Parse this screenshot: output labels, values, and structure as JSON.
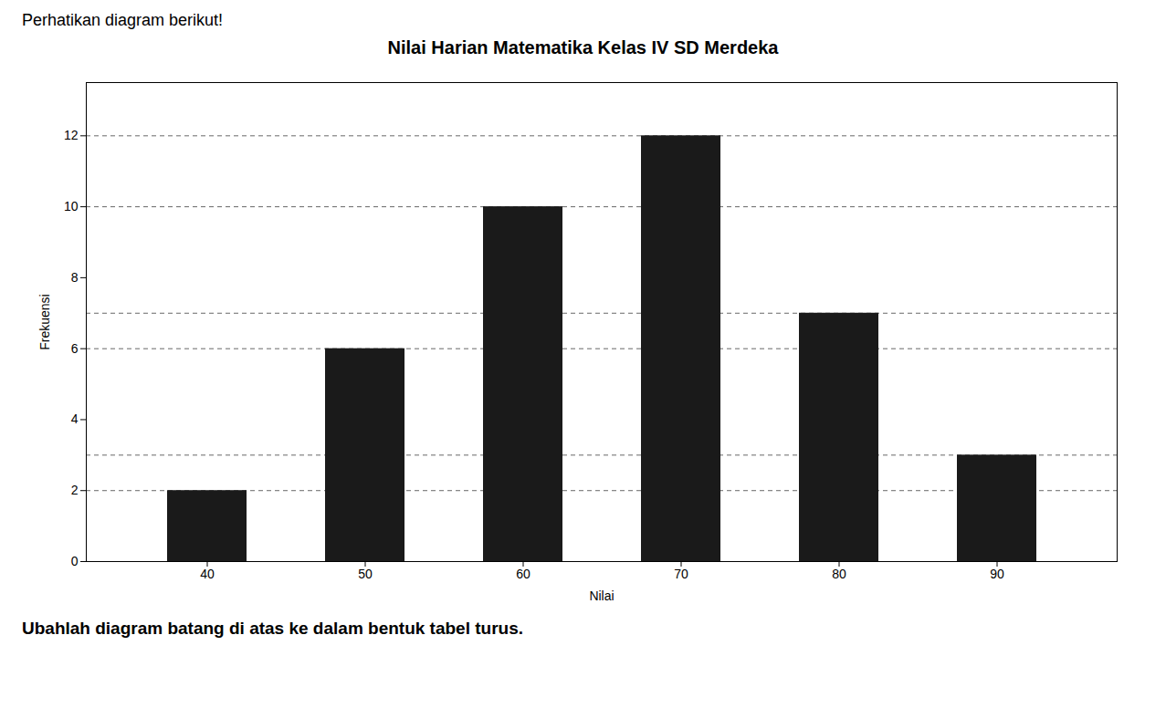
{
  "chart_data": {
    "type": "bar",
    "title": "Nilai Harian Matematika Kelas IV SD Merdeka",
    "annotations": [
      "Perhatikan diagram berikut!",
      "Ubahlah diagram batang di atas ke dalam bentuk tabel turus."
    ],
    "x_label": "Nilai",
    "y_label": "Frekuensi",
    "categories": [
      40,
      50,
      60,
      70,
      80,
      90
    ],
    "values": [
      2,
      6,
      10,
      12,
      7,
      3
    ],
    "color": "#1a1a1a",
    "ylim": [
      0,
      13.5
    ],
    "yticks": [
      0,
      2,
      4,
      6,
      8,
      10,
      12
    ],
    "grid": true,
    "grid_lines": [
      2,
      3,
      6,
      7,
      10,
      12
    ]
  }
}
